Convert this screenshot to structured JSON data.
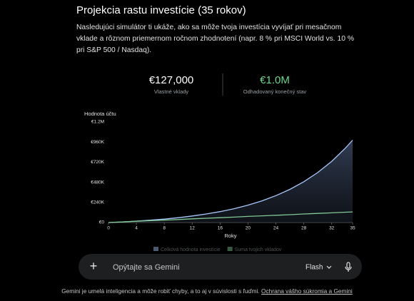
{
  "header": {
    "title": "Projekcia rastu investície (35 rokov)",
    "description": "Nasledujúci simulátor ti ukáže, ako sa môže tvoja investícia vyvíjať pri mesačnom vklade a rôznom priemernom ročnom zhodnotení (napr. 8 % pri MSCI World vs. 10 % pri S&P 500 / Nasdaq)."
  },
  "stats": [
    {
      "value": "€127,000",
      "label": "Vlastné vklady",
      "color": "#ffffff"
    },
    {
      "value": "€1.0M",
      "label": "Odhadovaný konečný stav",
      "color": "#6dd58c"
    }
  ],
  "chart_data": {
    "type": "line",
    "y_label": "Hodnota účtu",
    "x_label": "Roky",
    "x": [
      0,
      2,
      4,
      6,
      8,
      10,
      12,
      14,
      16,
      18,
      20,
      22,
      24,
      26,
      28,
      30,
      32,
      34,
      35
    ],
    "series": [
      {
        "name": "Celková hodnota investície",
        "color": "#a8c7fa",
        "fill_area": true,
        "values": [
          0,
          8000,
          17000,
          28000,
          41000,
          58000,
          78000,
          102000,
          130000,
          165000,
          208000,
          259000,
          321000,
          396000,
          487000,
          597000,
          730000,
          891000,
          983000
        ]
      },
      {
        "name": "Suma tvojich vkladov",
        "color": "#81c995",
        "fill_area": false,
        "values": [
          0,
          7000,
          15000,
          22000,
          29000,
          36000,
          44000,
          51000,
          58000,
          65000,
          73000,
          80000,
          87000,
          94000,
          102000,
          109000,
          116000,
          123000,
          127000
        ]
      }
    ],
    "xlim": [
      0,
      35
    ],
    "xticks": [
      0,
      4,
      8,
      12,
      16,
      20,
      24,
      28,
      32,
      35
    ],
    "ylim": [
      0,
      1200000
    ],
    "yticks": [
      {
        "value": 0,
        "label": "€0"
      },
      {
        "value": 240000,
        "label": "€240K"
      },
      {
        "value": 480000,
        "label": "€480K"
      },
      {
        "value": 720000,
        "label": "€720K"
      },
      {
        "value": 960000,
        "label": "€960K"
      },
      {
        "value": 1200000,
        "label": "€1.2M"
      }
    ],
    "grid": false,
    "legend": "bottom"
  },
  "input": {
    "placeholder": "Opýtajte sa Gemini",
    "model": "Flash"
  },
  "footer": {
    "text": "Gemini je umelá inteligencia a môže robiť chyby, a to aj v súvislosti s ľuďmi.",
    "link": "Ochrana vášho súkromia a Gemini"
  }
}
